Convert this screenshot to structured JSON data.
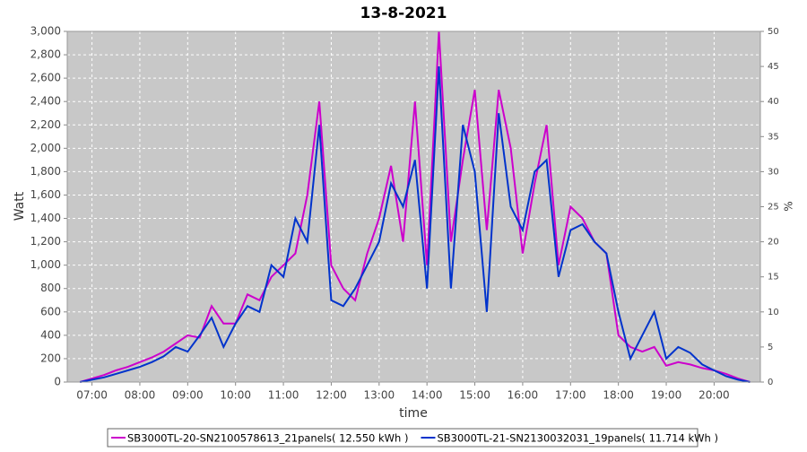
{
  "chart_data": {
    "type": "line",
    "title": "13-8-2021",
    "xlabel": "time",
    "ylabel": "Watt",
    "y2label": "%",
    "grid": true,
    "legend": "bottom",
    "x": [
      "06:45",
      "07:00",
      "07:15",
      "07:30",
      "07:45",
      "08:00",
      "08:15",
      "08:30",
      "08:45",
      "09:00",
      "09:15",
      "09:30",
      "09:45",
      "10:00",
      "10:15",
      "10:30",
      "10:45",
      "11:00",
      "11:15",
      "11:30",
      "11:45",
      "12:00",
      "12:15",
      "12:30",
      "12:45",
      "13:00",
      "13:15",
      "13:30",
      "13:45",
      "14:00",
      "14:15",
      "14:30",
      "14:45",
      "15:00",
      "15:15",
      "15:30",
      "15:45",
      "16:00",
      "16:15",
      "16:30",
      "16:45",
      "17:00",
      "17:15",
      "17:30",
      "17:45",
      "18:00",
      "18:15",
      "18:30",
      "18:45",
      "19:00",
      "19:15",
      "19:30",
      "19:45",
      "20:00",
      "20:15",
      "20:30",
      "20:45"
    ],
    "xlim": [
      "06:29",
      "20:58"
    ],
    "xticks": [
      "07:00",
      "08:00",
      "09:00",
      "10:00",
      "11:00",
      "12:00",
      "13:00",
      "14:00",
      "15:00",
      "16:00",
      "17:00",
      "18:00",
      "19:00",
      "20:00"
    ],
    "ylim": [
      0,
      3000
    ],
    "yticks": [
      0,
      200,
      400,
      600,
      800,
      {
        "value": 1000,
        "label": "1,000"
      },
      {
        "value": 1200,
        "label": "1,200"
      },
      {
        "value": 1400,
        "label": "1,400"
      },
      {
        "value": 1600,
        "label": "1,600"
      },
      {
        "value": 1800,
        "label": "1,800"
      },
      {
        "value": 2000,
        "label": "2,000"
      },
      {
        "value": 2200,
        "label": "2,200"
      },
      {
        "value": 2400,
        "label": "2,400"
      },
      {
        "value": 2600,
        "label": "2,600"
      },
      {
        "value": 2800,
        "label": "2,800"
      },
      {
        "value": 3000,
        "label": "3,000"
      }
    ],
    "y2lim": [
      0,
      50
    ],
    "y2ticks": [
      0,
      5,
      10,
      15,
      20,
      25,
      30,
      35,
      40,
      45,
      50
    ],
    "series": [
      {
        "name": "SB3000TL-20-SN2100578613_21panels( 12.550 kWh )",
        "color": "#cc00cc",
        "values": [
          0,
          30,
          60,
          100,
          130,
          170,
          210,
          260,
          330,
          400,
          380,
          650,
          500,
          500,
          750,
          700,
          900,
          1000,
          1100,
          1600,
          2400,
          1000,
          800,
          700,
          1100,
          1400,
          1850,
          1200,
          2400,
          1000,
          3000,
          1200,
          1900,
          2500,
          1300,
          2500,
          2000,
          1100,
          1700,
          2200,
          1000,
          1500,
          1400,
          1200,
          1100,
          400,
          300,
          260,
          300,
          140,
          170,
          150,
          120,
          100,
          70,
          30,
          0
        ]
      },
      {
        "name": "SB3000TL-21-SN2130032031_19panels( 11.714 kWh )",
        "color": "#0033cc",
        "values": [
          0,
          20,
          40,
          70,
          100,
          130,
          170,
          220,
          300,
          260,
          400,
          550,
          300,
          500,
          650,
          600,
          1000,
          900,
          1400,
          1200,
          2200,
          700,
          650,
          800,
          1000,
          1200,
          1700,
          1500,
          1900,
          800,
          2700,
          800,
          2200,
          1800,
          600,
          2300,
          1500,
          1300,
          1800,
          1900,
          900,
          1300,
          1350,
          1200,
          1100,
          600,
          200,
          400,
          600,
          200,
          300,
          250,
          150,
          100,
          50,
          20,
          0
        ]
      }
    ]
  }
}
